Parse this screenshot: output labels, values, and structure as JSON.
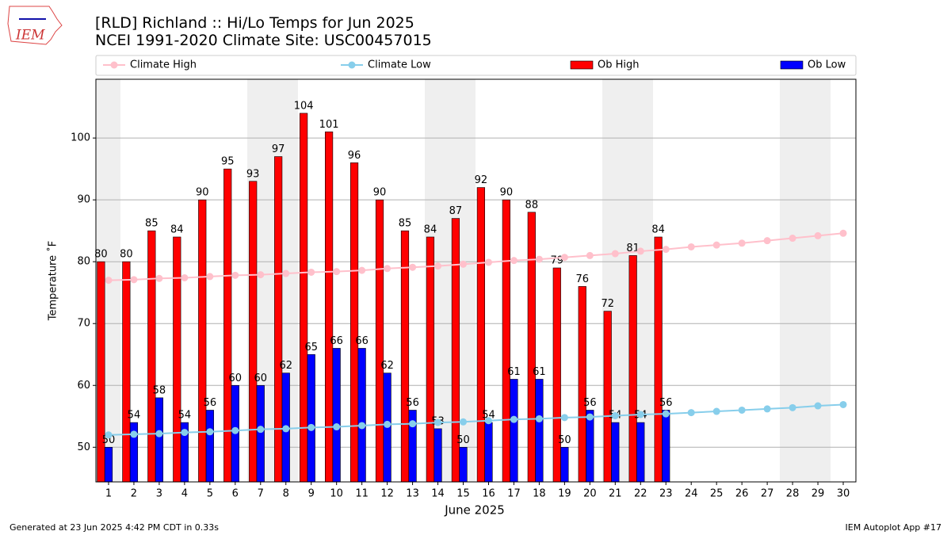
{
  "logo": "IEM",
  "footer_left": "Generated at 23 Jun 2025 4:42 PM CDT in 0.33s",
  "footer_right": "IEM Autoplot App #17",
  "chart_data": {
    "type": "bar",
    "title": "[RLD] Richland :: Hi/Lo Temps for Jun 2025",
    "subtitle": "NCEI 1991-2020 Climate Site: USC00457015",
    "xlabel": "June 2025",
    "ylabel": "Temperature ˚F",
    "x": [
      1,
      2,
      3,
      4,
      5,
      6,
      7,
      8,
      9,
      10,
      11,
      12,
      13,
      14,
      15,
      16,
      17,
      18,
      19,
      20,
      21,
      22,
      23,
      24,
      25,
      26,
      27,
      28,
      29,
      30
    ],
    "xlim": [
      0.5,
      30.5
    ],
    "xticks": [
      1,
      2,
      3,
      4,
      5,
      6,
      7,
      8,
      9,
      10,
      11,
      12,
      13,
      14,
      15,
      16,
      17,
      18,
      19,
      20,
      21,
      22,
      23,
      24,
      25,
      26,
      27,
      28,
      29,
      30
    ],
    "ylim": [
      44.4,
      109.5
    ],
    "yticks": [
      50,
      60,
      70,
      80,
      90,
      100
    ],
    "grid": true,
    "series": [
      {
        "name": "Climate High",
        "type": "line",
        "color": "#ffc0cb",
        "values": [
          77.0,
          77.1,
          77.3,
          77.4,
          77.6,
          77.8,
          77.9,
          78.1,
          78.3,
          78.4,
          78.6,
          78.9,
          79.1,
          79.3,
          79.6,
          79.9,
          80.2,
          80.4,
          80.7,
          81.0,
          81.3,
          81.7,
          82.0,
          82.4,
          82.7,
          83.0,
          83.4,
          83.8,
          84.2,
          84.6
        ]
      },
      {
        "name": "Climate Low",
        "type": "line",
        "color": "#87ceeb",
        "values": [
          52.0,
          52.1,
          52.2,
          52.4,
          52.5,
          52.7,
          52.9,
          53.0,
          53.2,
          53.3,
          53.5,
          53.7,
          53.8,
          54.0,
          54.1,
          54.3,
          54.5,
          54.6,
          54.8,
          54.9,
          55.1,
          55.3,
          55.4,
          55.6,
          55.8,
          56.0,
          56.2,
          56.4,
          56.7,
          56.9
        ]
      },
      {
        "name": "Ob High",
        "type": "bar",
        "color": "#ff0000",
        "values": [
          80,
          80,
          85,
          84,
          90,
          95,
          93,
          97,
          104,
          101,
          96,
          90,
          85,
          84,
          87,
          92,
          90,
          88,
          79,
          76,
          72,
          81,
          84,
          null,
          null,
          null,
          null,
          null,
          null,
          null
        ]
      },
      {
        "name": "Ob Low",
        "type": "bar",
        "color": "#0000ff",
        "values": [
          50,
          54,
          58,
          54,
          56,
          60,
          60,
          62,
          65,
          66,
          66,
          62,
          56,
          53,
          50,
          54,
          61,
          61,
          50,
          56,
          54,
          54,
          56,
          null,
          null,
          null,
          null,
          null,
          null,
          null
        ]
      }
    ]
  }
}
